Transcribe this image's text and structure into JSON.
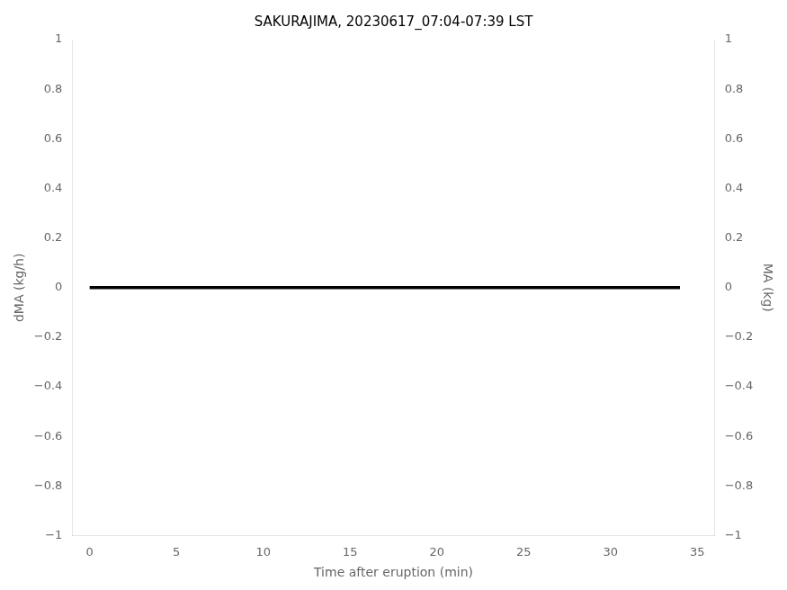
{
  "chart_data": {
    "type": "line",
    "title": "SAKURAJIMA, 20230617_07:04-07:39 LST",
    "xlabel": "Time after eruption (min)",
    "ylabel": "dMA (kg/h)",
    "y2label": "MA (kg)",
    "x": [
      0,
      34
    ],
    "series": [
      {
        "color": "#000000",
        "values": [
          0,
          0
        ]
      }
    ],
    "xlim": [
      -1,
      36
    ],
    "xticks": [
      0,
      5,
      10,
      15,
      20,
      25,
      30,
      35
    ],
    "ylim": [
      -1,
      1
    ],
    "yticks": [
      {
        "value": -1,
        "label": "−1"
      },
      {
        "value": -0.8,
        "label": "−0.8"
      },
      {
        "value": -0.6,
        "label": "−0.6"
      },
      {
        "value": -0.4,
        "label": "−0.4"
      },
      {
        "value": -0.2,
        "label": "−0.2"
      },
      0,
      0.2,
      0.4,
      0.6,
      0.8,
      1
    ],
    "y2lim": [
      -1,
      1
    ],
    "y2ticks": [
      {
        "value": -1,
        "label": "−1"
      },
      {
        "value": -0.8,
        "label": "−0.8"
      },
      {
        "value": -0.6,
        "label": "−0.6"
      },
      {
        "value": -0.4,
        "label": "−0.4"
      },
      {
        "value": -0.2,
        "label": "−0.2"
      },
      0,
      0.2,
      0.4,
      0.6,
      0.8,
      1
    ],
    "grid": false
  }
}
